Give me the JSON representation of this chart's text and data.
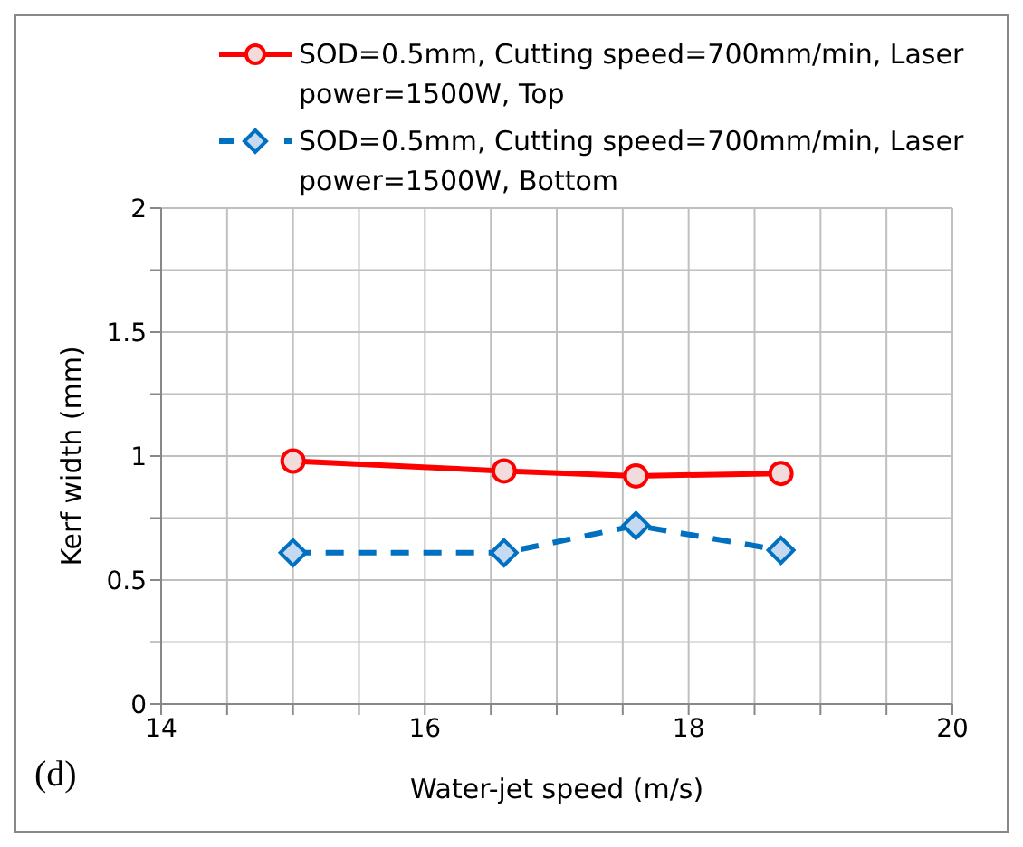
{
  "chart_data": {
    "type": "line",
    "xlabel": "Water-jet speed (m/s)",
    "ylabel": "Kerf width (mm)",
    "annotations": [
      "(d)"
    ],
    "legend": "top",
    "grid": true,
    "xlim": [
      14,
      20
    ],
    "ylim": [
      0,
      2
    ],
    "xticks": [
      14,
      {
        "value": 14.5,
        "label": null
      },
      {
        "value": 15,
        "label": null
      },
      {
        "value": 15.5,
        "label": null
      },
      16,
      {
        "value": 16.5,
        "label": null
      },
      {
        "value": 17,
        "label": null
      },
      {
        "value": 17.5,
        "label": null
      },
      18,
      {
        "value": 18.5,
        "label": null
      },
      {
        "value": 19,
        "label": null
      },
      {
        "value": 19.5,
        "label": null
      },
      20
    ],
    "yticks": [
      0,
      {
        "value": 0.25,
        "label": null
      },
      0.5,
      {
        "value": 0.75,
        "label": null
      },
      1,
      {
        "value": 1.25,
        "label": null
      },
      1.5,
      {
        "value": 1.75,
        "label": null
      },
      2
    ],
    "x": [
      15,
      16.6,
      17.6,
      18.7
    ],
    "series": [
      {
        "name": "SOD=0.5mm, Cutting speed=700mm/min, Laser power=1500W, Top",
        "color": "#ff0000",
        "marker": "circle",
        "line_style": "solid",
        "values": [
          0.98,
          0.94,
          0.92,
          0.93
        ]
      },
      {
        "name": "SOD=0.5mm, Cutting speed=700mm/min,  Laser power=1500W, Bottom",
        "color": "#0070c0",
        "marker": "diamond",
        "line_style": "dashed",
        "values": [
          0.61,
          0.61,
          0.72,
          0.62
        ]
      }
    ]
  }
}
